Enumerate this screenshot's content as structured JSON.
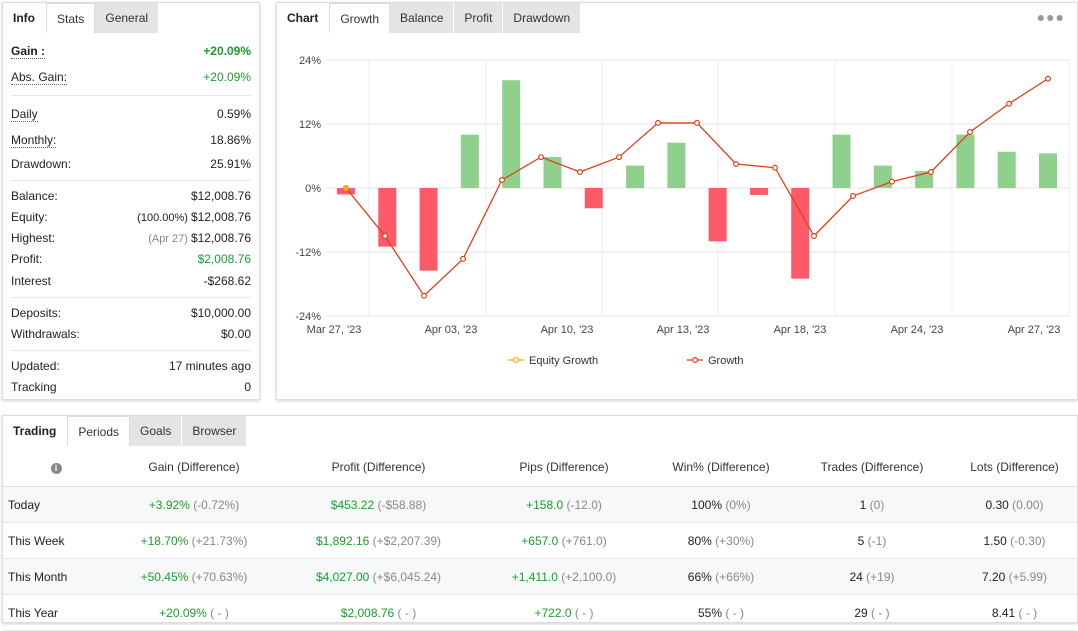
{
  "stats_panel": {
    "tabs": [
      "Info",
      "Stats",
      "General"
    ],
    "active_tab": "Stats",
    "gain": {
      "label": "Gain :",
      "value": "+20.09%"
    },
    "abs_gain": {
      "label": "Abs. Gain:",
      "value": "+20.09%"
    },
    "daily": {
      "label": "Daily",
      "value": "0.59%"
    },
    "monthly": {
      "label": "Monthly:",
      "value": "18.86%"
    },
    "drawdown": {
      "label": "Drawdown:",
      "value": "25.91%"
    },
    "balance": {
      "label": "Balance:",
      "value": "$12,008.76"
    },
    "equity": {
      "label": "Equity:",
      "note": "(100.00%)",
      "value": "$12,008.76"
    },
    "highest": {
      "label": "Highest:",
      "note": "(Apr 27)",
      "value": "$12,008.76"
    },
    "profit": {
      "label": "Profit:",
      "value": "$2,008.76"
    },
    "interest": {
      "label": "Interest",
      "value": "-$268.62"
    },
    "deposits": {
      "label": "Deposits:",
      "value": "$10,000.00"
    },
    "withdrawals": {
      "label": "Withdrawals:",
      "value": "$0.00"
    },
    "updated": {
      "label": "Updated:",
      "value": "17 minutes ago"
    },
    "tracking": {
      "label": "Tracking",
      "value": "0"
    }
  },
  "chart_panel": {
    "title": "Chart",
    "tabs": [
      "Growth",
      "Balance",
      "Profit",
      "Drawdown"
    ],
    "active_tab": "Growth",
    "menu_icon": "more-dots-icon"
  },
  "chart_data": {
    "type": "bar+line",
    "y_ticks": [
      "24%",
      "12%",
      "0%",
      "-12%",
      "-24%"
    ],
    "ylim": [
      -24,
      24
    ],
    "x_tick_labels": [
      "Mar 27, '23",
      "Apr 03, '23",
      "Apr 10, '23",
      "Apr 13, '23",
      "Apr 18, '23",
      "Apr 24, '23",
      "Apr 27, '23"
    ],
    "legend": [
      "Equity Growth",
      "Growth"
    ],
    "bars": [
      -1.2,
      -11.0,
      -15.5,
      10.0,
      20.2,
      5.8,
      -3.8,
      4.2,
      8.5,
      -10.0,
      -1.3,
      -17.0,
      10.0,
      4.2,
      3.2,
      10.0,
      6.8,
      6.5
    ],
    "growth": [
      0.0,
      -9.0,
      -20.2,
      -13.3,
      1.5,
      5.8,
      3.0,
      5.8,
      12.2,
      12.2,
      4.5,
      3.8,
      -9.0,
      -1.5,
      1.2,
      3.0,
      10.5,
      15.8,
      20.5
    ],
    "bar_color_positive": "#8fd18c",
    "bar_color_negative": "#ff5a6a",
    "line_color": "#e0401b",
    "equity_color": "#f2b01e"
  },
  "trading_panel": {
    "tabs": [
      "Trading",
      "Periods",
      "Goals",
      "Browser"
    ],
    "active_tab": "Periods",
    "headers": [
      "Gain (Difference)",
      "Profit (Difference)",
      "Pips (Difference)",
      "Win% (Difference)",
      "Trades (Difference)",
      "Lots (Difference)"
    ],
    "rows": [
      {
        "period": "Today",
        "gain": "+3.92%",
        "gain_d": "(-0.72%)",
        "profit": "$453.22",
        "profit_d": "(-$58.88)",
        "pips": "+158.0",
        "pips_d": "(-12.0)",
        "win": "100%",
        "win_d": "(0%)",
        "trades": "1",
        "trades_d": "(0)",
        "lots": "0.30",
        "lots_d": "(0.00)"
      },
      {
        "period": "This Week",
        "gain": "+18.70%",
        "gain_d": "(+21.73%)",
        "profit": "$1,892.16",
        "profit_d": "(+$2,207.39)",
        "pips": "+657.0",
        "pips_d": "(+761.0)",
        "win": "80%",
        "win_d": "(+30%)",
        "trades": "5",
        "trades_d": "(-1)",
        "lots": "1.50",
        "lots_d": "(-0.30)"
      },
      {
        "period": "This Month",
        "gain": "+50.45%",
        "gain_d": "(+70.63%)",
        "profit": "$4,027.00",
        "profit_d": "(+$6,045.24)",
        "pips": "+1,411.0",
        "pips_d": "(+2,100.0)",
        "win": "66%",
        "win_d": "(+66%)",
        "trades": "24",
        "trades_d": "(+19)",
        "lots": "7.20",
        "lots_d": "(+5.99)"
      },
      {
        "period": "This Year",
        "gain": "+20.09%",
        "gain_d": "( - )",
        "profit": "$2,008.76",
        "profit_d": "( - )",
        "pips": "+722.0",
        "pips_d": "( - )",
        "win": "55%",
        "win_d": "( - )",
        "trades": "29",
        "trades_d": "( - )",
        "lots": "8.41",
        "lots_d": "( - )"
      }
    ]
  }
}
